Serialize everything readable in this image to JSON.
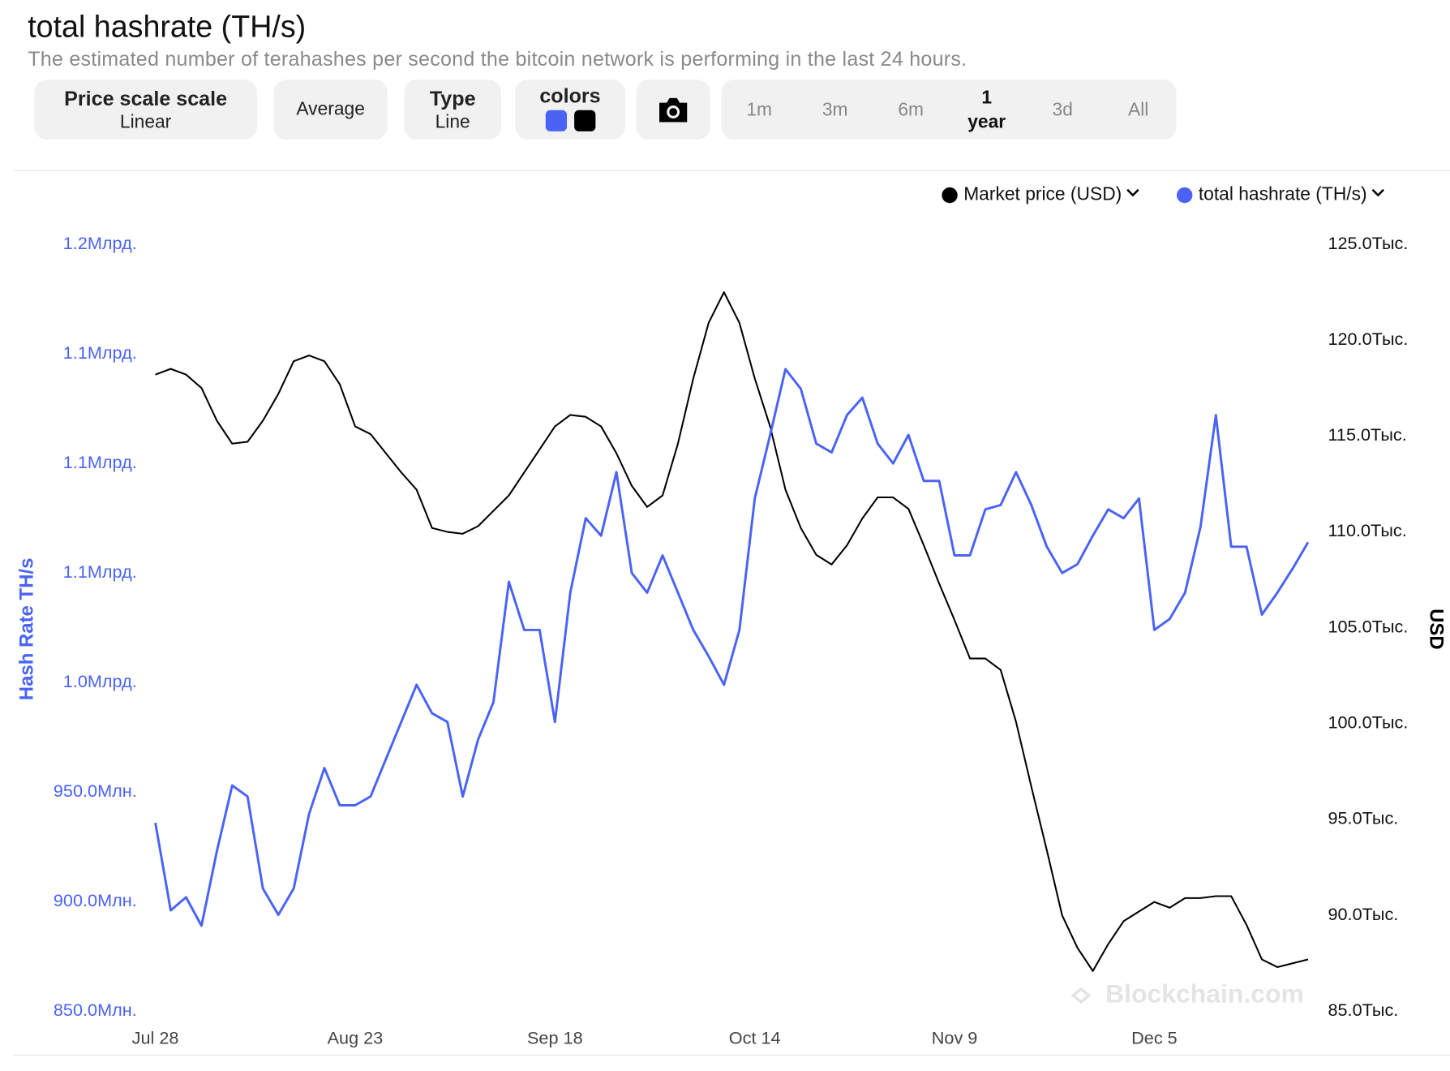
{
  "chart_data": {
    "type": "line",
    "title": "total hashrate (TH/s)",
    "subtitle": "The estimated number of terahashes per second the bitcoin network is performing in the last 24 hours.",
    "ylabel": "Hash Rate TH/s",
    "y2label": "USD",
    "watermark": "Blockchain.com",
    "legend": "top-right",
    "grid": false,
    "xlim": [
      0,
      150
    ],
    "xticks": [
      {
        "value": 0,
        "label": "Jul 28"
      },
      {
        "value": 26,
        "label": "Aug 23"
      },
      {
        "value": 52,
        "label": "Sep 18"
      },
      {
        "value": 78,
        "label": "Oct 14"
      },
      {
        "value": 104,
        "label": "Nov 9"
      },
      {
        "value": 130,
        "label": "Dec 5"
      }
    ],
    "ylim": [
      850000000,
      1200000000
    ],
    "yticks": [
      {
        "value": 850000000,
        "label": "850.0Млн."
      },
      {
        "value": 900000000,
        "label": "900.0Млн."
      },
      {
        "value": 950000000,
        "label": "950.0Млн."
      },
      {
        "value": 1000000000,
        "label": "1.0Млрд."
      },
      {
        "value": 1050000000,
        "label": "1.1Млрд."
      },
      {
        "value": 1100000000,
        "label": "1.1Млрд."
      },
      {
        "value": 1150000000,
        "label": "1.1Млрд."
      },
      {
        "value": 1200000000,
        "label": "1.2Млрд."
      }
    ],
    "y2lim": [
      85000,
      125000
    ],
    "y2ticks": [
      {
        "value": 85000,
        "label": "85.0Тыс."
      },
      {
        "value": 90000,
        "label": "90.0Тыс."
      },
      {
        "value": 95000,
        "label": "95.0Тыс."
      },
      {
        "value": 100000,
        "label": "100.0Тыс."
      },
      {
        "value": 105000,
        "label": "105.0Тыс."
      },
      {
        "value": 110000,
        "label": "110.0Тыс."
      },
      {
        "value": 115000,
        "label": "115.0Тыс."
      },
      {
        "value": 120000,
        "label": "120.0Тыс."
      },
      {
        "value": 125000,
        "label": "125.0Тыс."
      }
    ],
    "x": [
      0,
      2,
      4,
      6,
      8,
      10,
      12,
      14,
      16,
      18,
      20,
      22,
      24,
      26,
      28,
      30,
      32,
      34,
      36,
      38,
      40,
      42,
      44,
      46,
      48,
      50,
      52,
      54,
      56,
      58,
      60,
      62,
      64,
      66,
      68,
      70,
      72,
      74,
      76,
      78,
      80,
      82,
      84,
      86,
      88,
      90,
      92,
      94,
      96,
      98,
      100,
      102,
      104,
      106,
      108,
      110,
      112,
      114,
      116,
      118,
      120,
      122,
      124,
      126,
      128,
      130,
      132,
      134,
      136,
      138,
      140,
      142,
      144,
      146,
      148,
      150
    ],
    "series": [
      {
        "name": "Market price (USD)",
        "color": "#000000",
        "axis": "y2",
        "values": [
          118200,
          118500,
          118200,
          117500,
          115800,
          114600,
          114700,
          115800,
          117200,
          118900,
          119200,
          118900,
          117700,
          115500,
          115100,
          114100,
          113100,
          112200,
          110200,
          110000,
          109900,
          110300,
          111100,
          111900,
          113100,
          114300,
          115500,
          116100,
          116000,
          115500,
          114100,
          112400,
          111300,
          111900,
          114600,
          118000,
          120900,
          122500,
          120900,
          118000,
          115500,
          112200,
          110200,
          108800,
          108300,
          109300,
          110700,
          111800,
          111800,
          111200,
          109300,
          107300,
          105400,
          103400,
          103400,
          102800,
          100100,
          96700,
          93400,
          90000,
          88300,
          87100,
          88500,
          89700,
          90200,
          90700,
          90400,
          90900,
          90900,
          91000,
          91000,
          89500,
          87700,
          87300,
          87500,
          87700
        ]
      },
      {
        "name": "total hashrate (TH/s)",
        "color": "#4a63f5",
        "values": [
          936000000,
          896000000,
          902000000,
          889000000,
          923000000,
          953000000,
          948000000,
          906000000,
          894000000,
          906000000,
          940000000,
          961000000,
          944000000,
          944000000,
          948000000,
          965000000,
          982000000,
          999000000,
          986000000,
          982000000,
          948000000,
          974000000,
          991000000,
          1046000000,
          1024000000,
          1024000000,
          982000000,
          1041000000,
          1075000000,
          1067000000,
          1096000000,
          1050000000,
          1041000000,
          1058000000,
          1041000000,
          1024000000,
          1012000000,
          999000000,
          1024000000,
          1084000000,
          1113000000,
          1143000000,
          1134000000,
          1109000000,
          1105000000,
          1122000000,
          1130000000,
          1109000000,
          1100000000,
          1113000000,
          1092000000,
          1092000000,
          1058000000,
          1058000000,
          1079000000,
          1081000000,
          1096000000,
          1081000000,
          1062000000,
          1050000000,
          1054000000,
          1067000000,
          1079000000,
          1075000000,
          1084000000,
          1024000000,
          1029000000,
          1041000000,
          1071000000,
          1122000000,
          1062000000,
          1062000000,
          1031000000,
          1041000000,
          1052000000,
          1064000000
        ]
      }
    ]
  },
  "toolbar": {
    "scale": {
      "label": "Price scale scale",
      "value": "Linear"
    },
    "average": "Average",
    "type": {
      "label": "Type",
      "value": "Line"
    },
    "colors": "colors",
    "ranges": [
      "1m",
      "3m",
      "6m",
      "1 year",
      "3d",
      "All"
    ],
    "active_range": "1 year"
  }
}
